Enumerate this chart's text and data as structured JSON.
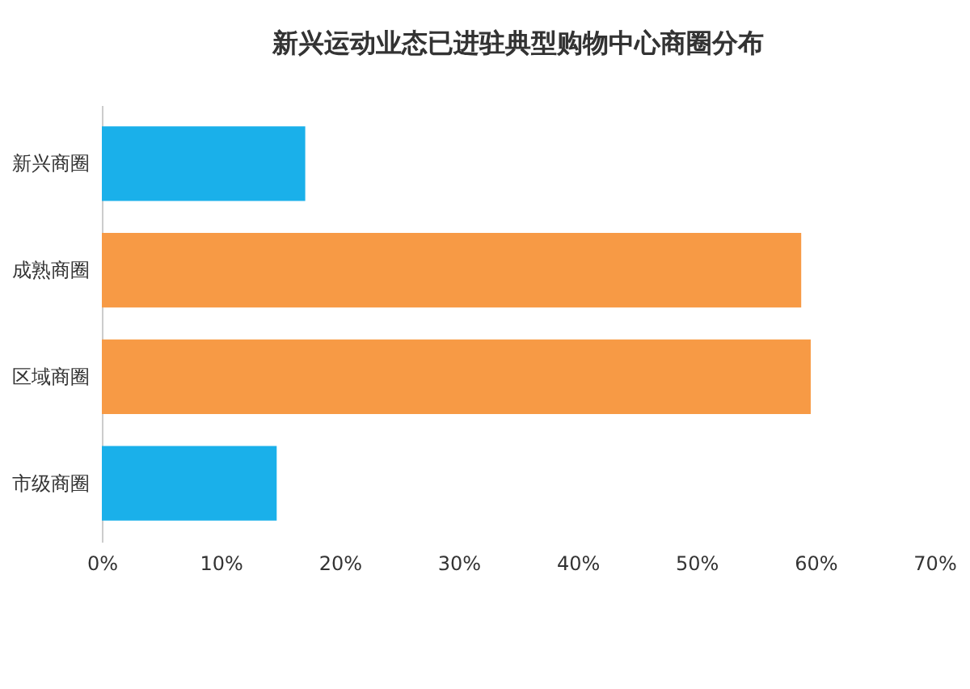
{
  "chart_data": {
    "type": "bar",
    "orientation": "horizontal",
    "title": "新兴运动业态已进驻典型购物中心商圈分布",
    "categories": [
      "新兴商圈",
      "成熟商圈",
      "区域商圈",
      "市级商圈"
    ],
    "values": [
      17.1,
      58.8,
      59.6,
      14.7
    ],
    "colors": [
      "#1ab0ea",
      "#f79a45",
      "#f79a45",
      "#1ab0ea"
    ],
    "xlim": [
      0,
      70
    ],
    "xticks": [
      {
        "value": 0,
        "label": "0%"
      },
      {
        "value": 10,
        "label": "10%"
      },
      {
        "value": 20,
        "label": "20%"
      },
      {
        "value": 30,
        "label": "30%"
      },
      {
        "value": 40,
        "label": "40%"
      },
      {
        "value": 50,
        "label": "50%"
      },
      {
        "value": 60,
        "label": "60%"
      },
      {
        "value": 70,
        "label": "70%"
      }
    ],
    "grid": false
  }
}
